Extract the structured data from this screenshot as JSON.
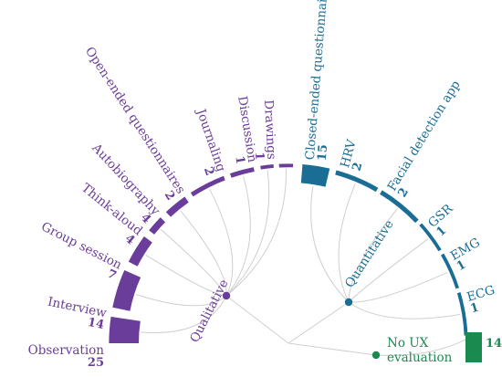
{
  "colors": {
    "qualitative": "#6a3d9a",
    "quantitative": "#1a6e96",
    "no_ux": "#1b8a4f",
    "connector": "#cfcfcf"
  },
  "groups": [
    {
      "key": "qualitative",
      "label": "Qualitative"
    },
    {
      "key": "quantitative",
      "label": "Quantitative"
    },
    {
      "key": "no_ux",
      "label": "No UX\nevaluation"
    }
  ],
  "methods": [
    {
      "key": "observation",
      "label": "Observation",
      "count": "25",
      "group": "qualitative"
    },
    {
      "key": "interview",
      "label": "Interview",
      "count": "14",
      "group": "qualitative"
    },
    {
      "key": "group_session",
      "label": "Group session",
      "count": "7",
      "group": "qualitative"
    },
    {
      "key": "think_aloud",
      "label": "Think-aloud",
      "count": "4",
      "group": "qualitative"
    },
    {
      "key": "autobiography",
      "label": "Autobiography",
      "count": "4",
      "group": "qualitative"
    },
    {
      "key": "open_ended_questionnaires",
      "label": "Open-ended questionnaires",
      "count": "2",
      "group": "qualitative"
    },
    {
      "key": "journaling",
      "label": "Journaling",
      "count": "2",
      "group": "qualitative"
    },
    {
      "key": "discussion",
      "label": "Discussion",
      "count": "1",
      "group": "qualitative"
    },
    {
      "key": "drawings",
      "label": "Drawings",
      "count": "1",
      "group": "qualitative"
    },
    {
      "key": "closed_ended_questionnaires",
      "label": "Closed-ended questionnaires",
      "count": "15",
      "group": "quantitative"
    },
    {
      "key": "hrv",
      "label": "HRV",
      "count": "2",
      "group": "quantitative"
    },
    {
      "key": "facial_detection_app",
      "label": "Facial detection app",
      "count": "2",
      "group": "quantitative"
    },
    {
      "key": "gsr",
      "label": "GSR",
      "count": "1",
      "group": "quantitative"
    },
    {
      "key": "emg",
      "label": "EMG",
      "count": "1",
      "group": "quantitative"
    },
    {
      "key": "ecg",
      "label": "ECG",
      "count": "1",
      "group": "quantitative"
    },
    {
      "key": "no_ux_evaluation",
      "label": "",
      "count": "14",
      "group": "no_ux"
    }
  ]
}
